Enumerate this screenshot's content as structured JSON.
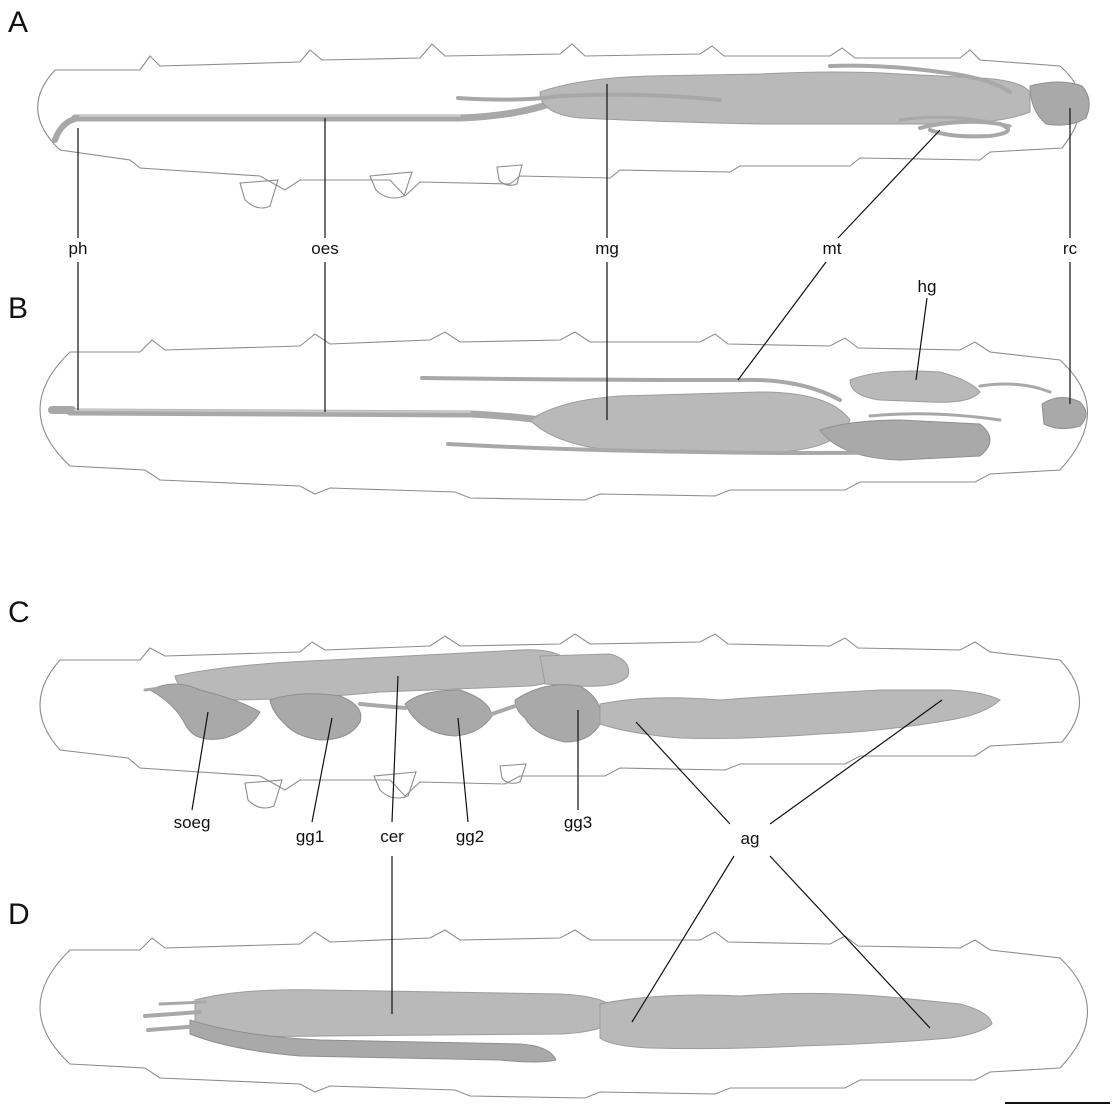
{
  "panels": {
    "a": "A",
    "b": "B",
    "c": "C",
    "d": "D"
  },
  "labels": {
    "ph": "ph",
    "oes": "oes",
    "mg": "mg",
    "mt": "mt",
    "rc": "rc",
    "hg": "hg",
    "soeg": "soeg",
    "gg1": "gg1",
    "cer": "cer",
    "gg2": "gg2",
    "gg3": "gg3",
    "ag": "ag"
  },
  "colors": {
    "organ_fill": "#b9b9b9",
    "outline": "#8c8c8c",
    "leader_lines": "#111111"
  }
}
